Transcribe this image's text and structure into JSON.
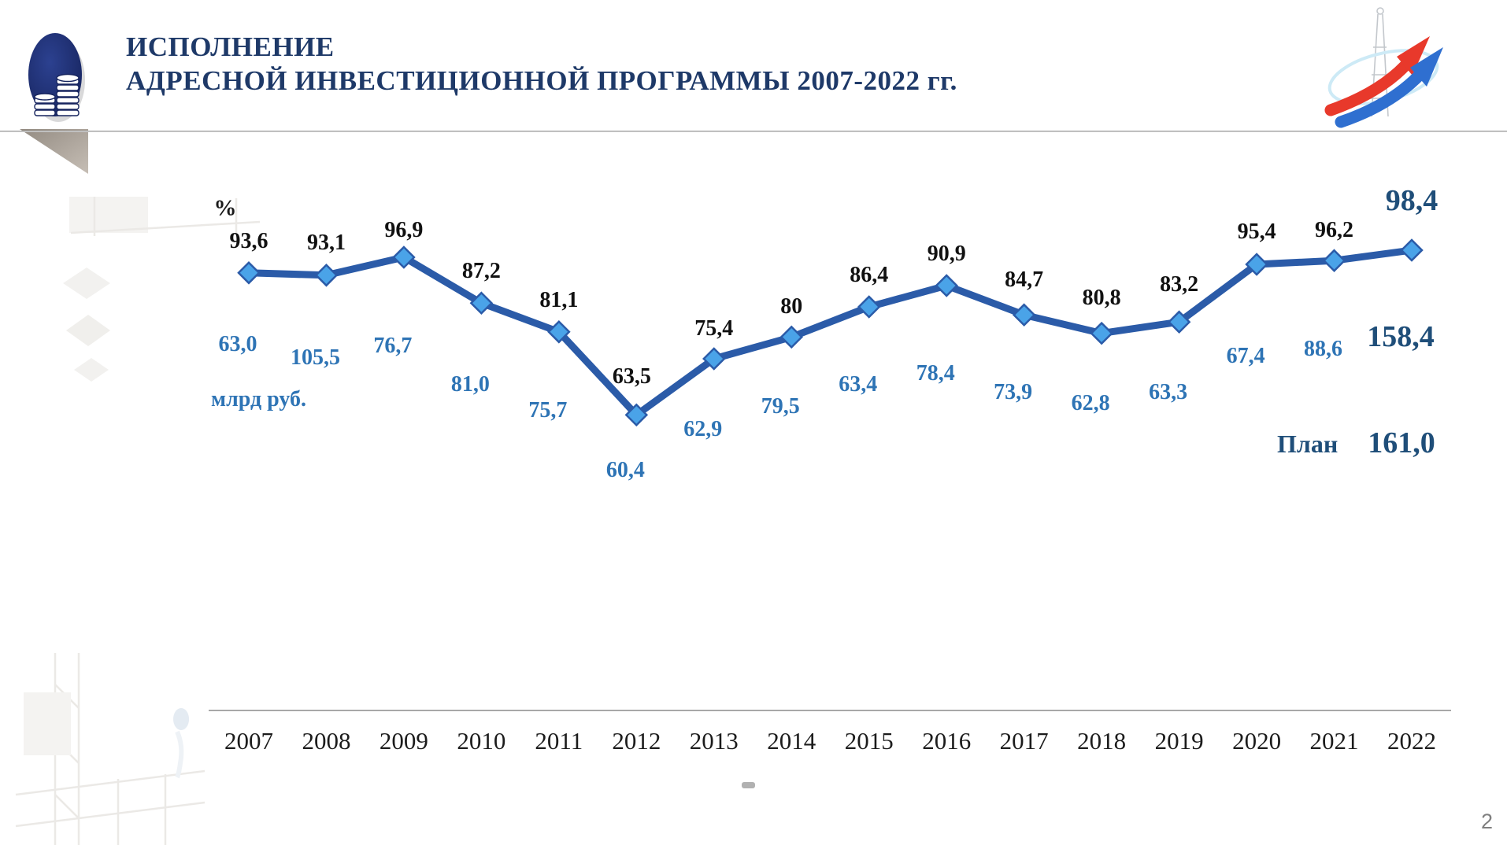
{
  "slide": {
    "title_line1": "ИСПОЛНЕНИЕ",
    "title_line2": "АДРЕСНОЙ ИНВЕСТИЦИОННОЙ ПРОГРАММЫ 2007-2022 гг.",
    "page_number": "2"
  },
  "chart_data": {
    "type": "line",
    "title": "Исполнение адресной инвестиционной программы 2007-2022 гг.",
    "categories": [
      "2007",
      "2008",
      "2009",
      "2010",
      "2011",
      "2012",
      "2013",
      "2014",
      "2015",
      "2016",
      "2017",
      "2018",
      "2019",
      "2020",
      "2021",
      "2022"
    ],
    "unit_top": "%",
    "unit_bottom": "млрд руб.",
    "series": [
      {
        "name": "Исполнение, %",
        "values": [
          93.6,
          93.1,
          96.9,
          87.2,
          81.1,
          63.5,
          75.4,
          80,
          86.4,
          90.9,
          84.7,
          80.8,
          83.2,
          95.4,
          96.2,
          98.4
        ],
        "labels": [
          "93,6",
          "93,1",
          "96,9",
          "87,2",
          "81,1",
          "63,5",
          "75,4",
          "80",
          "86,4",
          "90,9",
          "84,7",
          "80,8",
          "83,2",
          "95,4",
          "96,2",
          "98,4"
        ]
      },
      {
        "name": "млрд руб.",
        "values": [
          63.0,
          105.5,
          76.7,
          81.0,
          75.7,
          60.4,
          62.9,
          79.5,
          63.4,
          78.4,
          73.9,
          62.8,
          63.3,
          67.4,
          88.6,
          158.4
        ],
        "labels": [
          "63,0",
          "105,5",
          "76,7",
          "81,0",
          "75,7",
          "60,4",
          "62,9",
          "79,5",
          "63,4",
          "78,4",
          "73,9",
          "62,8",
          "63,3",
          "67,4",
          "88,6",
          "158,4"
        ]
      }
    ],
    "plan": {
      "label": "План",
      "value": 161.0,
      "value_label": "161,0"
    },
    "highlight_year": "2022",
    "ylim": [
      55,
      105
    ],
    "grid": false,
    "legend_position": "none",
    "colors": {
      "line": "#2b5ba8",
      "marker_fill": "#4aa3e8",
      "percent_label": "#111111",
      "rub_label": "#2e74b5",
      "big_label": "#1f4e79",
      "axis": "#a8a8a8"
    }
  }
}
